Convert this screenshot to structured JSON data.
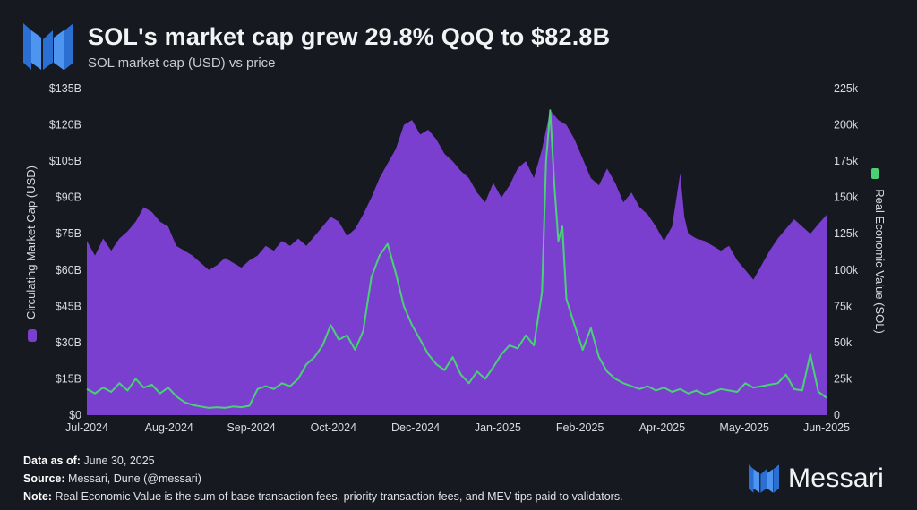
{
  "header": {
    "title": "SOL's market cap grew 29.8% QoQ to $82.8B",
    "subtitle": "SOL market cap (USD) vs price"
  },
  "footer": {
    "data_as_of_label": "Data as of:",
    "data_as_of_value": "June 30, 2025",
    "source_label": "Source:",
    "source_value": "Messari, Dune (@messari)",
    "note_label": "Note:",
    "note_value": "Real Economic Value is the sum of base transaction fees, priority transaction fees, and MEV tips paid to validators.",
    "brand": "Messari"
  },
  "colors": {
    "background": "#16191f",
    "market_cap": "#7b3fcf",
    "rev": "#49d275"
  },
  "chart_data": {
    "type": "area",
    "title": "SOL's market cap grew 29.8% QoQ to $82.8B",
    "x_tick_labels": [
      "Jul-2024",
      "Aug-2024",
      "Sep-2024",
      "Oct-2024",
      "Dec-2024",
      "Jan-2025",
      "Feb-2025",
      "Apr-2025",
      "May-2025",
      "Jun-2025"
    ],
    "y_left": {
      "label": "Circulating Market Cap (USD)",
      "ticks": [
        "$0",
        "$15B",
        "$30B",
        "$45B",
        "$60B",
        "$75B",
        "$90B",
        "$105B",
        "$120B",
        "$135B"
      ],
      "range": [
        0,
        135
      ]
    },
    "y_right": {
      "label": "Real Economic Value (SOL)",
      "ticks": [
        "0",
        "25k",
        "50k",
        "75k",
        "100k",
        "125k",
        "150k",
        "175k",
        "200k",
        "225k"
      ],
      "range": [
        0,
        225000
      ]
    },
    "x_range_days": [
      0,
      364
    ],
    "series": [
      {
        "name": "Circulating Market Cap (USD)",
        "axis": "left",
        "unit": "USD billions",
        "points": [
          [
            0,
            72
          ],
          [
            4,
            66
          ],
          [
            8,
            73
          ],
          [
            12,
            68
          ],
          [
            16,
            73
          ],
          [
            20,
            76
          ],
          [
            24,
            80
          ],
          [
            28,
            86
          ],
          [
            32,
            84
          ],
          [
            36,
            80
          ],
          [
            40,
            78
          ],
          [
            44,
            70
          ],
          [
            48,
            68
          ],
          [
            52,
            66
          ],
          [
            56,
            63
          ],
          [
            60,
            60
          ],
          [
            64,
            62
          ],
          [
            68,
            65
          ],
          [
            72,
            63
          ],
          [
            76,
            61
          ],
          [
            80,
            64
          ],
          [
            84,
            66
          ],
          [
            88,
            70
          ],
          [
            92,
            68
          ],
          [
            96,
            72
          ],
          [
            100,
            70
          ],
          [
            104,
            73
          ],
          [
            108,
            70
          ],
          [
            112,
            74
          ],
          [
            116,
            78
          ],
          [
            120,
            82
          ],
          [
            124,
            80
          ],
          [
            128,
            74
          ],
          [
            132,
            77
          ],
          [
            136,
            83
          ],
          [
            140,
            90
          ],
          [
            144,
            98
          ],
          [
            148,
            104
          ],
          [
            152,
            110
          ],
          [
            156,
            120
          ],
          [
            160,
            122
          ],
          [
            164,
            116
          ],
          [
            168,
            118
          ],
          [
            172,
            114
          ],
          [
            176,
            108
          ],
          [
            180,
            105
          ],
          [
            184,
            101
          ],
          [
            188,
            98
          ],
          [
            192,
            92
          ],
          [
            196,
            88
          ],
          [
            200,
            96
          ],
          [
            204,
            90
          ],
          [
            208,
            95
          ],
          [
            212,
            102
          ],
          [
            216,
            105
          ],
          [
            220,
            98
          ],
          [
            224,
            110
          ],
          [
            228,
            126
          ],
          [
            232,
            122
          ],
          [
            236,
            120
          ],
          [
            240,
            114
          ],
          [
            244,
            106
          ],
          [
            248,
            98
          ],
          [
            252,
            95
          ],
          [
            256,
            102
          ],
          [
            260,
            96
          ],
          [
            264,
            88
          ],
          [
            268,
            92
          ],
          [
            272,
            86
          ],
          [
            276,
            83
          ],
          [
            280,
            78
          ],
          [
            284,
            72
          ],
          [
            288,
            78
          ],
          [
            292,
            100
          ],
          [
            294,
            82
          ],
          [
            296,
            75
          ],
          [
            300,
            73
          ],
          [
            304,
            72
          ],
          [
            308,
            70
          ],
          [
            312,
            68
          ],
          [
            316,
            70
          ],
          [
            320,
            64
          ],
          [
            324,
            60
          ],
          [
            328,
            56
          ],
          [
            332,
            62
          ],
          [
            336,
            68
          ],
          [
            340,
            73
          ],
          [
            344,
            77
          ],
          [
            348,
            81
          ],
          [
            352,
            78
          ],
          [
            356,
            75
          ],
          [
            360,
            79
          ],
          [
            364,
            82.8
          ]
        ]
      },
      {
        "name": "Real Economic Value (SOL)",
        "axis": "right",
        "unit": "SOL",
        "points": [
          [
            0,
            18000
          ],
          [
            4,
            15000
          ],
          [
            8,
            19000
          ],
          [
            12,
            16000
          ],
          [
            16,
            22000
          ],
          [
            20,
            17000
          ],
          [
            24,
            25000
          ],
          [
            28,
            19000
          ],
          [
            32,
            21000
          ],
          [
            36,
            15000
          ],
          [
            40,
            19000
          ],
          [
            44,
            13000
          ],
          [
            48,
            9000
          ],
          [
            52,
            7000
          ],
          [
            56,
            6000
          ],
          [
            60,
            5000
          ],
          [
            64,
            5500
          ],
          [
            68,
            5000
          ],
          [
            72,
            6000
          ],
          [
            76,
            5500
          ],
          [
            80,
            6500
          ],
          [
            84,
            18000
          ],
          [
            88,
            20000
          ],
          [
            92,
            18000
          ],
          [
            96,
            22000
          ],
          [
            100,
            20000
          ],
          [
            104,
            25000
          ],
          [
            108,
            35000
          ],
          [
            112,
            40000
          ],
          [
            116,
            48000
          ],
          [
            120,
            62000
          ],
          [
            124,
            52000
          ],
          [
            128,
            55000
          ],
          [
            132,
            45000
          ],
          [
            136,
            58000
          ],
          [
            140,
            95000
          ],
          [
            144,
            110000
          ],
          [
            148,
            118000
          ],
          [
            152,
            98000
          ],
          [
            156,
            75000
          ],
          [
            160,
            62000
          ],
          [
            164,
            52000
          ],
          [
            168,
            42000
          ],
          [
            172,
            35000
          ],
          [
            176,
            31000
          ],
          [
            180,
            40000
          ],
          [
            184,
            28000
          ],
          [
            188,
            22000
          ],
          [
            192,
            30000
          ],
          [
            196,
            25000
          ],
          [
            200,
            33000
          ],
          [
            204,
            42000
          ],
          [
            208,
            48000
          ],
          [
            212,
            46000
          ],
          [
            216,
            55000
          ],
          [
            220,
            48000
          ],
          [
            224,
            85000
          ],
          [
            226,
            175000
          ],
          [
            228,
            210000
          ],
          [
            230,
            160000
          ],
          [
            232,
            120000
          ],
          [
            234,
            130000
          ],
          [
            236,
            80000
          ],
          [
            240,
            62000
          ],
          [
            244,
            45000
          ],
          [
            248,
            60000
          ],
          [
            252,
            40000
          ],
          [
            256,
            30000
          ],
          [
            260,
            25000
          ],
          [
            264,
            22000
          ],
          [
            268,
            20000
          ],
          [
            272,
            18000
          ],
          [
            276,
            20000
          ],
          [
            280,
            17000
          ],
          [
            284,
            19000
          ],
          [
            288,
            16000
          ],
          [
            292,
            18000
          ],
          [
            296,
            15000
          ],
          [
            300,
            17000
          ],
          [
            304,
            14000
          ],
          [
            308,
            16000
          ],
          [
            312,
            18000
          ],
          [
            316,
            17000
          ],
          [
            320,
            16000
          ],
          [
            324,
            22000
          ],
          [
            328,
            19000
          ],
          [
            332,
            20000
          ],
          [
            336,
            21000
          ],
          [
            340,
            22000
          ],
          [
            344,
            28000
          ],
          [
            348,
            18000
          ],
          [
            352,
            17000
          ],
          [
            356,
            42000
          ],
          [
            360,
            16000
          ],
          [
            364,
            12000
          ]
        ]
      }
    ],
    "legend": "rotated axis titles with color swatches"
  }
}
